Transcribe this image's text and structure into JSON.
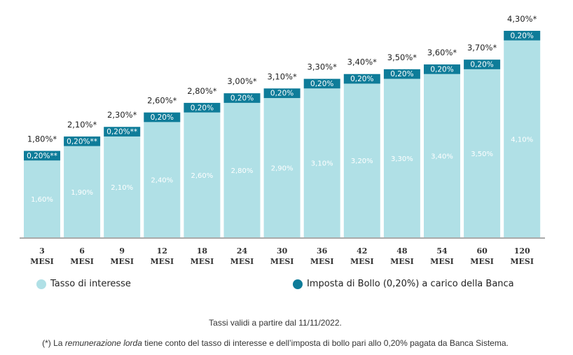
{
  "chart_data": {
    "type": "bar",
    "stacked": true,
    "categories": [
      [
        "3",
        "MESI"
      ],
      [
        "6",
        "MESI"
      ],
      [
        "9",
        "MESI"
      ],
      [
        "12",
        "MESI"
      ],
      [
        "18",
        "MESI"
      ],
      [
        "24",
        "MESI"
      ],
      [
        "30",
        "MESI"
      ],
      [
        "36",
        "MESI"
      ],
      [
        "42",
        "MESI"
      ],
      [
        "48",
        "MESI"
      ],
      [
        "54",
        "MESI"
      ],
      [
        "60",
        "MESI"
      ],
      [
        "120",
        "MESI"
      ]
    ],
    "series": [
      {
        "name": "Tasso di interesse",
        "color": "#b0e0e6",
        "values": [
          1.6,
          1.9,
          2.1,
          2.4,
          2.6,
          2.8,
          2.9,
          3.1,
          3.2,
          3.3,
          3.4,
          3.5,
          4.1
        ],
        "labels": [
          "1,60%",
          "1,90%",
          "2,10%",
          "2,40%",
          "2,60%",
          "2,80%",
          "2,90%",
          "3,10%",
          "3,20%",
          "3,30%",
          "3,40%",
          "3,50%",
          "4,10%"
        ]
      },
      {
        "name": "Imposta di Bollo (0,20%) a carico della Banca",
        "color": "#0e7c99",
        "values": [
          0.2,
          0.2,
          0.2,
          0.2,
          0.2,
          0.2,
          0.2,
          0.2,
          0.2,
          0.2,
          0.2,
          0.2,
          0.2
        ],
        "labels": [
          "0,20%**",
          "0,20%**",
          "0,20%**",
          "0,20%",
          "0,20%",
          "0,20%",
          "0,20%",
          "0,20%",
          "0,20%",
          "0,20%",
          "0,20%",
          "0,20%",
          "0,20%"
        ]
      }
    ],
    "totals": [
      1.8,
      2.1,
      2.3,
      2.6,
      2.8,
      3.0,
      3.1,
      3.3,
      3.4,
      3.5,
      3.6,
      3.7,
      4.3
    ],
    "total_labels": [
      "1,80%*",
      "2,10%*",
      "2,30%*",
      "2,60%*",
      "2,80%*",
      "3,00%*",
      "3,10%*",
      "3,30%*",
      "3,40%*",
      "3,50%*",
      "3,60%*",
      "3,70%*",
      "4,30%*"
    ],
    "ylim": [
      0,
      4.3
    ],
    "grid": false,
    "legend_position": "bottom"
  },
  "legend": {
    "items": [
      {
        "label": "Tasso di interesse",
        "color": "#b0e0e6"
      },
      {
        "label": "Imposta di Bollo (0,20%) a carico della Banca",
        "color": "#0e7c99"
      }
    ]
  },
  "notes": {
    "validity": "Tassi validi a partire dal 11/11/2022.",
    "footnote_prefix": "(*) La ",
    "footnote_italic": "remunerazione lorda",
    "footnote_suffix": " tiene conto del tasso di interesse e dell’imposta di bollo pari allo 0,20% pagata da Banca Sistema."
  }
}
